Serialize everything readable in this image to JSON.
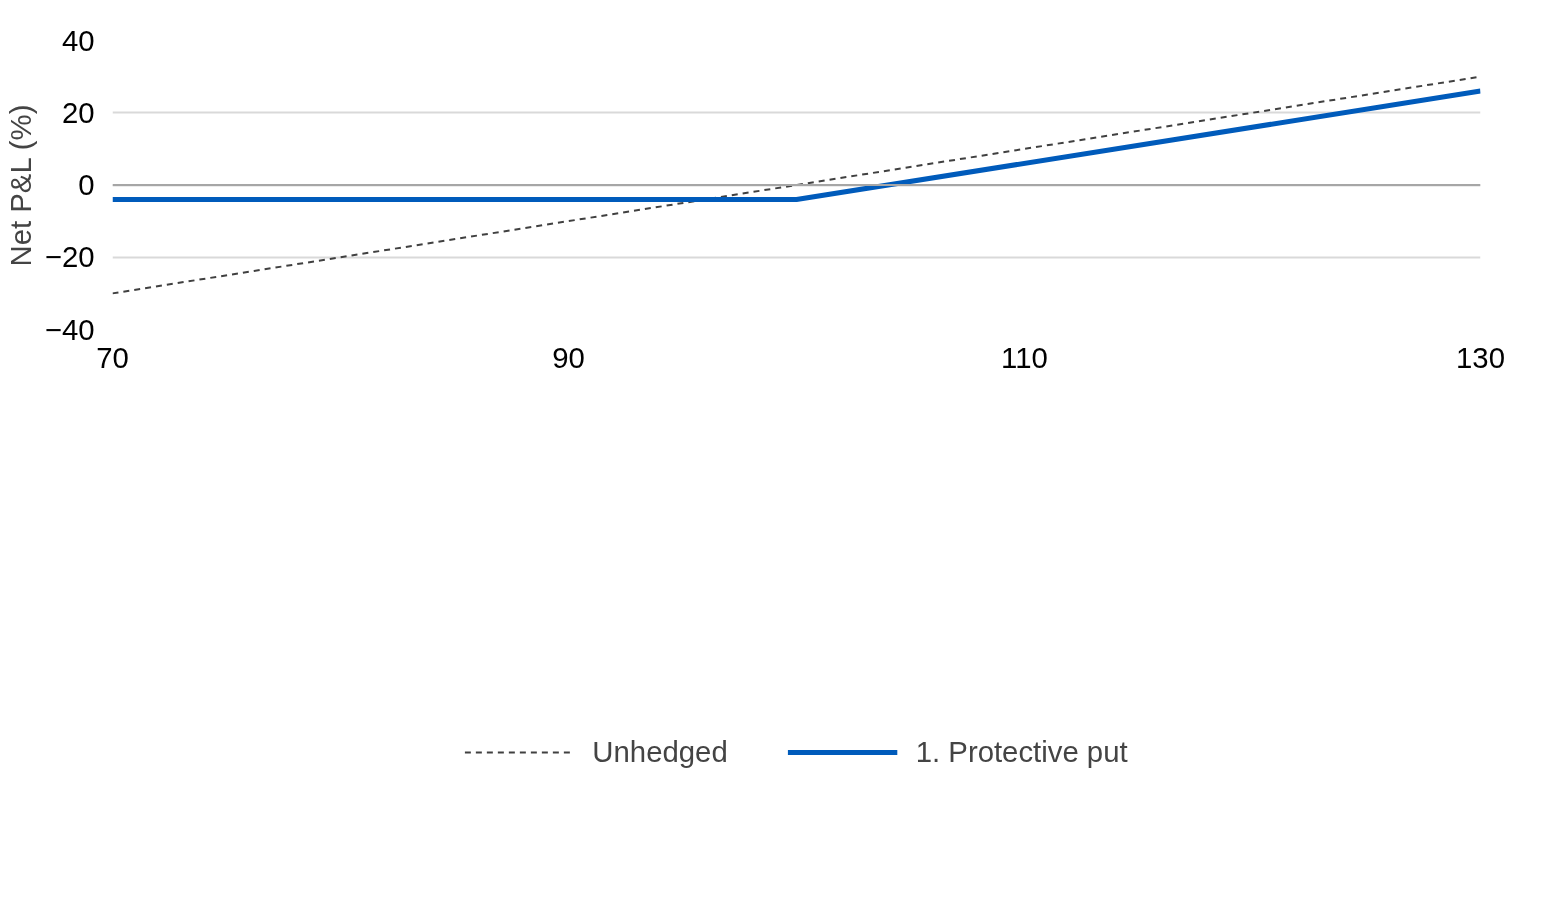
{
  "chart_data": {
    "type": "line",
    "ylabel": "Net P&L (%)",
    "xlim": [
      70,
      130
    ],
    "xticks": [
      70,
      90,
      110,
      130
    ],
    "ylim": [
      -40,
      40
    ],
    "yticks": [
      -40,
      -20,
      0,
      20,
      40
    ],
    "grid": "y",
    "legend": "bottom",
    "ref_lines": [
      {
        "axis": "y",
        "value": 0,
        "color": "#a6a6a6"
      }
    ],
    "series": [
      {
        "name": "Unhedged",
        "color": "#404040",
        "line_style": "dashed",
        "x": [
          70,
          130
        ],
        "values": [
          -30,
          30
        ]
      },
      {
        "name": "1. Protective put",
        "color": "#005bbb",
        "line_style": "solid",
        "x": [
          70,
          100,
          130
        ],
        "values": [
          -4,
          -4,
          26
        ]
      }
    ]
  }
}
